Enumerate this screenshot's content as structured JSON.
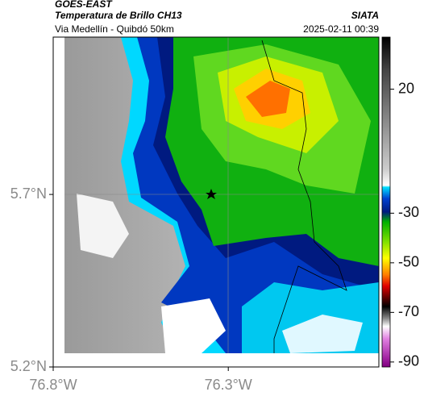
{
  "header": {
    "title": "GOES-EAST",
    "subtitle": "Temperatura de Brillo CH13",
    "source": "SIATA",
    "location": "Via Medellín - Quibdó 50km",
    "datetime": "2025-02-11 00:39"
  },
  "map": {
    "xlim": [
      -76.8,
      -75.87
    ],
    "ylim": [
      5.2,
      6.156
    ],
    "xticks": [
      {
        "value": -76.8,
        "label": "76.8°W"
      },
      {
        "value": -76.3,
        "label": "76.3°W"
      }
    ],
    "yticks": [
      {
        "value": 5.2,
        "label": "5.2°N"
      },
      {
        "value": 5.7,
        "label": "5.7°N"
      }
    ]
  },
  "colorbar": {
    "lim": [
      41,
      -92
    ],
    "ticks": [
      20,
      -30,
      -50,
      -70,
      -90
    ]
  }
}
